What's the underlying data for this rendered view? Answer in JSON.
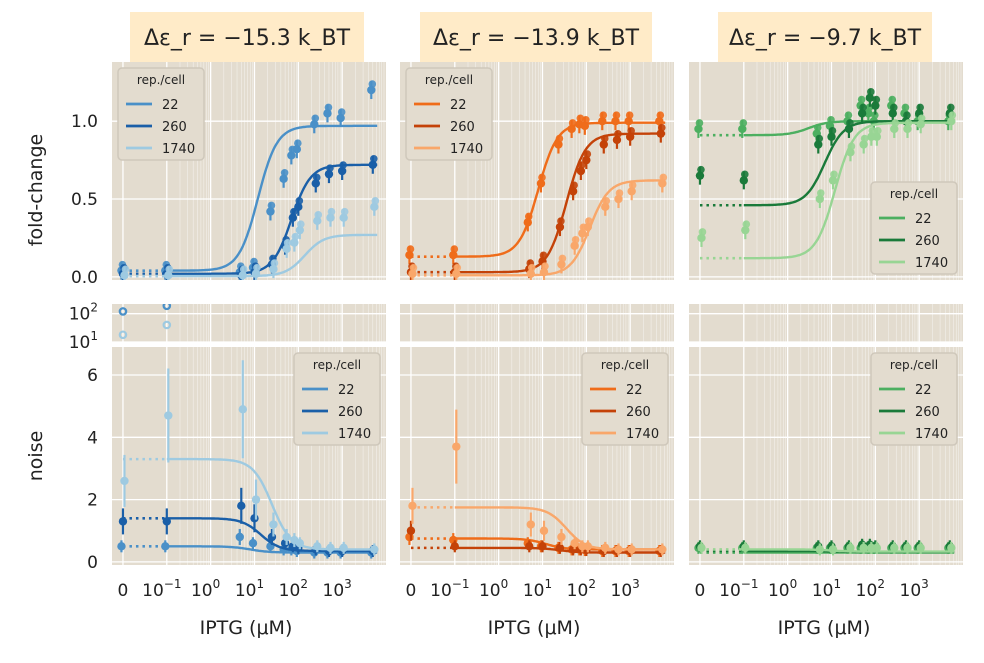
{
  "chart_data": {
    "type": "line",
    "layout": "3 columns x 2 rows (fold-change top, noise bottom) with broken noise y-axis",
    "x_scale": "symlog (linear near 0, log above 10^-1)",
    "x_ticks": [
      "0",
      "10^-1",
      "10^0",
      "10^1",
      "10^2",
      "10^3"
    ],
    "xlabel": "IPTG (μM)",
    "legend_title": "rep./cell",
    "legend_entries": [
      "22",
      "260",
      "1740"
    ],
    "ylabel_top": "fold-change",
    "ylabel_bottom": "noise",
    "ylim_top": [
      -0.02,
      1.38
    ],
    "yticks_top": [
      "0.0",
      "0.5",
      "1.0"
    ],
    "ylim_bottom": [
      -0.1,
      6.9
    ],
    "yticks_bottom": [
      "0",
      "2",
      "4",
      "6"
    ],
    "ylim_break": [
      10,
      220
    ],
    "yticks_break": [
      "10^1",
      "10^2"
    ],
    "iptg_concentrations": [
      0,
      0.1,
      5,
      10,
      25,
      50,
      75,
      100,
      250,
      500,
      1000,
      5000
    ],
    "panels": [
      {
        "title": "Δε_r = −15.3 k_BT",
        "palette": "blues",
        "colors": [
          "#4a90c8",
          "#1a5fa8",
          "#9ecae1"
        ],
        "legend_position_top": "upper-left",
        "legend_position_bottom": "upper-right",
        "fold_change_theory": {
          "22": [
            0.04,
            0.97,
            12
          ],
          "260": [
            0.02,
            0.72,
            70
          ],
          "1740": [
            0.005,
            0.27,
            140
          ]
        },
        "fold_change_points": {
          "22": [
            [
              0,
              0.04
            ],
            [
              0.1,
              0.04
            ],
            [
              5,
              0.03
            ],
            [
              10,
              0.06
            ],
            [
              25,
              0.42
            ],
            [
              50,
              0.63
            ],
            [
              75,
              0.78
            ],
            [
              100,
              0.82
            ],
            [
              250,
              0.98
            ],
            [
              500,
              1.05
            ],
            [
              1000,
              1.02
            ],
            [
              5000,
              1.2
            ]
          ],
          "260": [
            [
              0,
              0.02
            ],
            [
              0.1,
              0.02
            ],
            [
              5,
              0.01
            ],
            [
              10,
              0.03
            ],
            [
              25,
              0.08
            ],
            [
              50,
              0.2
            ],
            [
              75,
              0.38
            ],
            [
              100,
              0.45
            ],
            [
              250,
              0.6
            ],
            [
              500,
              0.66
            ],
            [
              1000,
              0.68
            ],
            [
              5000,
              0.72
            ]
          ],
          "1740": [
            [
              0,
              0.01
            ],
            [
              0.1,
              0.01
            ],
            [
              5,
              0.01
            ],
            [
              10,
              0.02
            ],
            [
              25,
              0.05
            ],
            [
              50,
              0.18
            ],
            [
              75,
              0.22
            ],
            [
              100,
              0.3
            ],
            [
              250,
              0.36
            ],
            [
              500,
              0.38
            ],
            [
              1000,
              0.38
            ],
            [
              5000,
              0.45
            ]
          ]
        },
        "noise_theory": {
          "22": [
            0.5,
            0.3,
            8
          ],
          "260": [
            1.4,
            0.35,
            14
          ],
          "1740": [
            3.3,
            0.4,
            25
          ]
        },
        "noise_points": {
          "22": [
            [
              0,
              0.5
            ],
            [
              0.1,
              0.5
            ],
            [
              5,
              0.8
            ],
            [
              10,
              0.6
            ],
            [
              25,
              0.5
            ],
            [
              50,
              0.4
            ],
            [
              75,
              0.4
            ],
            [
              100,
              0.35
            ],
            [
              250,
              0.3
            ],
            [
              500,
              0.3
            ],
            [
              1000,
              0.3
            ],
            [
              5000,
              0.3
            ]
          ],
          "260": [
            [
              0,
              1.3
            ],
            [
              0.1,
              1.3
            ],
            [
              5,
              1.8
            ],
            [
              10,
              1.4
            ],
            [
              25,
              0.8
            ],
            [
              50,
              0.6
            ],
            [
              75,
              0.5
            ],
            [
              100,
              0.45
            ],
            [
              250,
              0.4
            ],
            [
              500,
              0.35
            ],
            [
              1000,
              0.35
            ],
            [
              5000,
              0.35
            ]
          ],
          "1740": [
            [
              0,
              2.6
            ],
            [
              0.1,
              4.7
            ],
            [
              5,
              4.9
            ],
            [
              10,
              2.0
            ],
            [
              25,
              1.2
            ],
            [
              50,
              0.8
            ],
            [
              75,
              0.7
            ],
            [
              100,
              0.6
            ],
            [
              250,
              0.5
            ],
            [
              500,
              0.45
            ],
            [
              1000,
              0.45
            ],
            [
              5000,
              0.4
            ]
          ]
        },
        "break_points": {
          "22": [
            [
              0,
              120
            ],
            [
              0.1,
              190
            ]
          ],
          "1740": [
            [
              0,
              18
            ],
            [
              0.1,
              40
            ]
          ]
        }
      },
      {
        "title": "Δε_r = −13.9 k_BT",
        "palette": "oranges",
        "colors": [
          "#ef6c1a",
          "#c44208",
          "#f9a76a"
        ],
        "legend_position_top": "upper-left",
        "legend_position_bottom": "upper-right",
        "fold_change_theory": {
          "22": [
            0.13,
            0.99,
            8
          ],
          "260": [
            0.03,
            0.92,
            35
          ],
          "1740": [
            0.01,
            0.62,
            120
          ]
        },
        "fold_change_points": {
          "22": [
            [
              0,
              0.14
            ],
            [
              0.1,
              0.14
            ],
            [
              5,
              0.35
            ],
            [
              10,
              0.6
            ],
            [
              25,
              0.85
            ],
            [
              50,
              0.95
            ],
            [
              75,
              0.98
            ],
            [
              100,
              0.97
            ],
            [
              250,
              1.0
            ],
            [
              500,
              1.0
            ],
            [
              1000,
              1.0
            ],
            [
              5000,
              1.0
            ]
          ],
          "260": [
            [
              0,
              0.03
            ],
            [
              0.1,
              0.03
            ],
            [
              5,
              0.05
            ],
            [
              10,
              0.1
            ],
            [
              25,
              0.32
            ],
            [
              50,
              0.55
            ],
            [
              75,
              0.68
            ],
            [
              100,
              0.75
            ],
            [
              250,
              0.85
            ],
            [
              500,
              0.88
            ],
            [
              1000,
              0.9
            ],
            [
              5000,
              0.92
            ]
          ],
          "1740": [
            [
              0,
              0.02
            ],
            [
              0.1,
              0.02
            ],
            [
              5,
              0.02
            ],
            [
              10,
              0.03
            ],
            [
              25,
              0.08
            ],
            [
              50,
              0.2
            ],
            [
              75,
              0.28
            ],
            [
              100,
              0.32
            ],
            [
              250,
              0.45
            ],
            [
              500,
              0.5
            ],
            [
              1000,
              0.55
            ],
            [
              5000,
              0.6
            ]
          ]
        },
        "noise_theory": {
          "22": [
            0.75,
            0.4,
            12
          ],
          "260": [
            0.45,
            0.3,
            25
          ],
          "1740": [
            1.75,
            0.4,
            35
          ]
        },
        "noise_points": {
          "22": [
            [
              0,
              0.8
            ],
            [
              0.1,
              0.7
            ],
            [
              5,
              0.6
            ],
            [
              10,
              0.5
            ],
            [
              25,
              0.45
            ],
            [
              50,
              0.4
            ],
            [
              75,
              0.4
            ],
            [
              100,
              0.38
            ],
            [
              250,
              0.35
            ],
            [
              500,
              0.35
            ],
            [
              1000,
              0.35
            ],
            [
              5000,
              0.35
            ]
          ],
          "260": [
            [
              0,
              1.0
            ],
            [
              0.1,
              0.5
            ],
            [
              5,
              0.5
            ],
            [
              10,
              0.5
            ],
            [
              25,
              0.45
            ],
            [
              50,
              0.4
            ],
            [
              75,
              0.4
            ],
            [
              100,
              0.38
            ],
            [
              250,
              0.35
            ],
            [
              500,
              0.35
            ],
            [
              1000,
              0.35
            ],
            [
              5000,
              0.35
            ]
          ],
          "1740": [
            [
              0,
              1.8
            ],
            [
              0.1,
              3.7
            ],
            [
              5,
              1.2
            ],
            [
              10,
              1.0
            ],
            [
              25,
              0.8
            ],
            [
              50,
              0.6
            ],
            [
              75,
              0.5
            ],
            [
              100,
              0.5
            ],
            [
              250,
              0.45
            ],
            [
              500,
              0.4
            ],
            [
              1000,
              0.4
            ],
            [
              5000,
              0.4
            ]
          ]
        },
        "break_points": {}
      },
      {
        "title": "Δε_r = −9.7 k_BT",
        "palette": "greens",
        "colors": [
          "#4caf60",
          "#1a7a3a",
          "#98d594"
        ],
        "legend_position_top": "lower-right",
        "legend_position_bottom": "upper-right",
        "fold_change_theory": {
          "22": [
            0.91,
            1.0,
            3
          ],
          "260": [
            0.46,
            1.0,
            7
          ],
          "1740": [
            0.12,
            0.99,
            12
          ]
        },
        "fold_change_points": {
          "22": [
            [
              0,
              0.95
            ],
            [
              0.1,
              0.95
            ],
            [
              5,
              0.92
            ],
            [
              10,
              0.97
            ],
            [
              25,
              1.0
            ],
            [
              50,
              1.1
            ],
            [
              75,
              1.05
            ],
            [
              100,
              1.0
            ],
            [
              250,
              1.1
            ],
            [
              500,
              1.05
            ],
            [
              1000,
              1.0
            ],
            [
              5000,
              1.0
            ]
          ],
          "260": [
            [
              0,
              0.65
            ],
            [
              0.1,
              0.62
            ],
            [
              5,
              0.85
            ],
            [
              10,
              0.9
            ],
            [
              25,
              0.95
            ],
            [
              50,
              1.05
            ],
            [
              75,
              1.15
            ],
            [
              100,
              1.1
            ],
            [
              250,
              1.05
            ],
            [
              500,
              1.0
            ],
            [
              1000,
              1.05
            ],
            [
              5000,
              1.05
            ]
          ],
          "1740": [
            [
              0,
              0.25
            ],
            [
              0.1,
              0.3
            ],
            [
              5,
              0.5
            ],
            [
              10,
              0.62
            ],
            [
              25,
              0.8
            ],
            [
              50,
              0.85
            ],
            [
              75,
              0.9
            ],
            [
              100,
              0.9
            ],
            [
              250,
              0.95
            ],
            [
              500,
              0.95
            ],
            [
              1000,
              0.98
            ],
            [
              5000,
              1.0
            ]
          ]
        },
        "noise_theory": {
          "22": [
            0.3,
            0.3,
            10
          ],
          "260": [
            0.35,
            0.32,
            10
          ],
          "1740": [
            0.4,
            0.33,
            10
          ]
        },
        "noise_points": {
          "22": [
            [
              0,
              0.45
            ],
            [
              0.1,
              0.45
            ],
            [
              5,
              0.45
            ],
            [
              10,
              0.45
            ],
            [
              25,
              0.45
            ],
            [
              50,
              0.45
            ],
            [
              75,
              0.45
            ],
            [
              100,
              0.45
            ],
            [
              250,
              0.45
            ],
            [
              500,
              0.45
            ],
            [
              1000,
              0.45
            ],
            [
              5000,
              0.45
            ]
          ],
          "260": [
            [
              0,
              0.5
            ],
            [
              0.1,
              0.5
            ],
            [
              5,
              0.5
            ],
            [
              10,
              0.5
            ],
            [
              25,
              0.5
            ],
            [
              50,
              0.55
            ],
            [
              75,
              0.55
            ],
            [
              100,
              0.5
            ],
            [
              250,
              0.5
            ],
            [
              500,
              0.5
            ],
            [
              1000,
              0.5
            ],
            [
              5000,
              0.5
            ]
          ],
          "1740": [
            [
              0,
              0.45
            ],
            [
              0.1,
              0.45
            ],
            [
              5,
              0.4
            ],
            [
              10,
              0.4
            ],
            [
              25,
              0.45
            ],
            [
              50,
              0.45
            ],
            [
              75,
              0.45
            ],
            [
              100,
              0.45
            ],
            [
              250,
              0.45
            ],
            [
              500,
              0.45
            ],
            [
              1000,
              0.45
            ],
            [
              5000,
              0.45
            ]
          ]
        },
        "break_points": {}
      }
    ]
  }
}
